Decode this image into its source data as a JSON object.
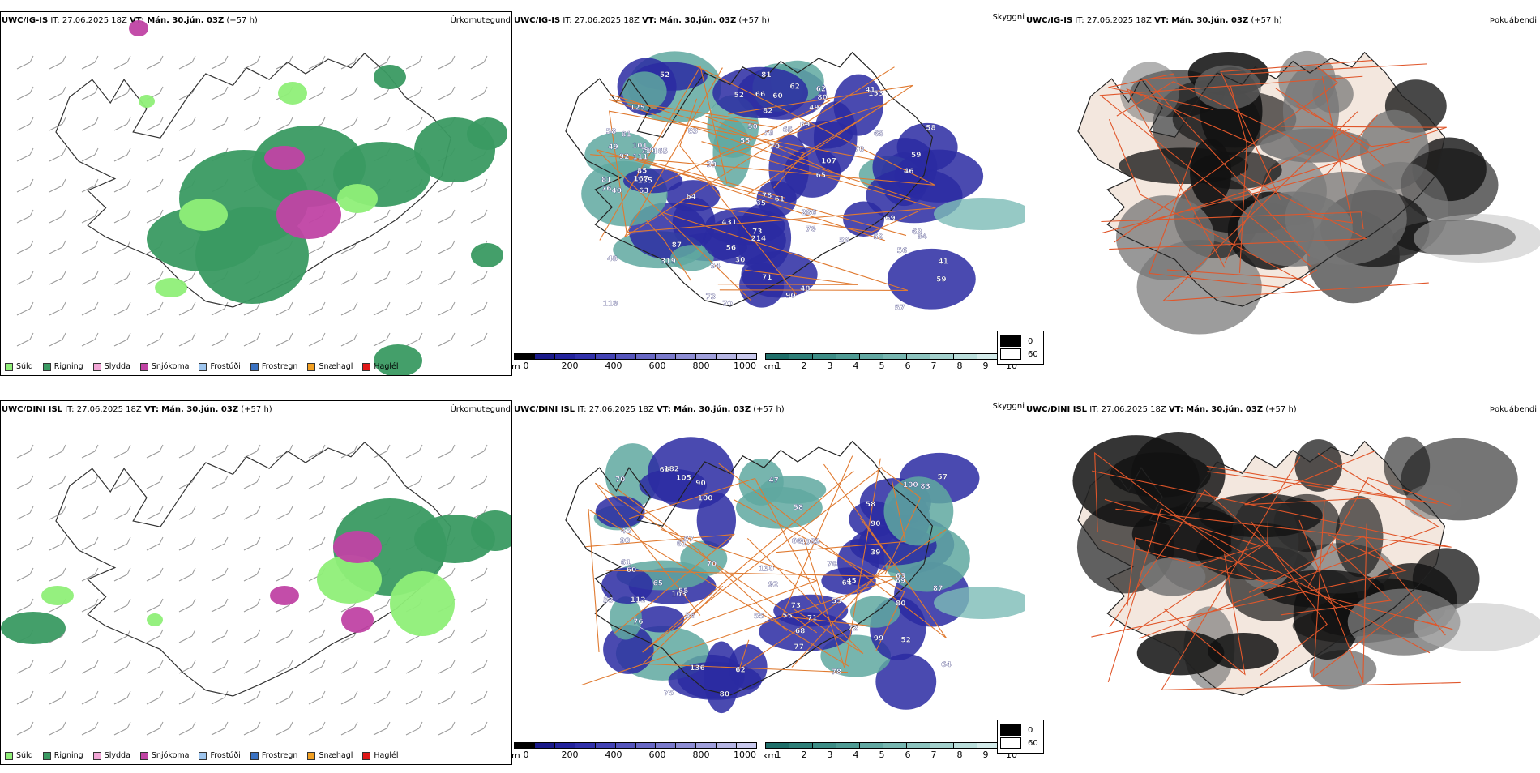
{
  "rows": [
    {
      "model": "UWC/IG-IS",
      "run": "IT: 27.06.2025 18Z",
      "valid_label": "VT:",
      "valid": "Mán. 30.jún. 03Z",
      "lead": "(+57 h)",
      "visibility_values": [
        "66",
        "59",
        "83",
        "92",
        "70",
        "69",
        "62",
        "82",
        "70",
        "64",
        "69",
        "76",
        "60",
        "76",
        "81",
        "80",
        "101",
        "73",
        "59",
        "52",
        "57",
        "56",
        "48",
        "49",
        "62",
        "107",
        "73",
        "49",
        "59",
        "58",
        "50",
        "81",
        "61",
        "90",
        "111",
        "125",
        "165",
        "71",
        "85",
        "94",
        "78",
        "63",
        "56",
        "59",
        "68",
        "65",
        "71",
        "63",
        "50",
        "59",
        "87",
        "135",
        "41",
        "55",
        "81",
        "70",
        "40",
        "35",
        "48",
        "214",
        "153",
        "41",
        "58",
        "33",
        "34",
        "46",
        "30",
        "319",
        "286",
        "431",
        "167",
        "52",
        "65",
        "118"
      ]
    },
    {
      "model": "UWC/DINI ISL",
      "run": "IT: 27.06.2025 18Z",
      "valid_label": "VT:",
      "valid": "Mán. 30.jún. 03Z",
      "lead": "(+57 h)",
      "visibility_values": [
        "68",
        "77",
        "76",
        "47",
        "105",
        "112",
        "87",
        "103",
        "63",
        "70",
        "80",
        "72",
        "100",
        "92",
        "58",
        "64",
        "55",
        "60",
        "57",
        "90",
        "56",
        "66",
        "78",
        "69",
        "83",
        "71",
        "61",
        "73",
        "75",
        "64",
        "62",
        "58",
        "83",
        "90",
        "55",
        "100",
        "70",
        "55",
        "45",
        "55",
        "39",
        "90",
        "66",
        "78",
        "136",
        "130",
        "182",
        "80",
        "49",
        "45",
        "52",
        "67",
        "58",
        "65",
        "99",
        "61"
      ]
    }
  ],
  "panel_titles": {
    "ptype": "Úrkomutegund",
    "visibility": "Skyggni",
    "fog": "Þokuábendi"
  },
  "ptype_legend": [
    {
      "label": "Súld",
      "color": "#8fef78"
    },
    {
      "label": "Rigning",
      "color": "#3a9a62"
    },
    {
      "label": "Slydda",
      "color": "#f2a6d6"
    },
    {
      "label": "Snjókoma",
      "color": "#c043a4"
    },
    {
      "label": "Frostúði",
      "color": "#9ec5ee"
    },
    {
      "label": "Frostregn",
      "color": "#3a72c2"
    },
    {
      "label": "Snæhagl",
      "color": "#f2a022"
    },
    {
      "label": "Haglél",
      "color": "#e01818"
    }
  ],
  "terrain_bar": {
    "unit": "m",
    "ticks": [
      "0",
      "200",
      "400",
      "600",
      "800",
      "1000"
    ],
    "colors": [
      "#000000",
      "#1a1a8a",
      "#23239c",
      "#3131aa",
      "#4343b4",
      "#5555bc",
      "#6767c4",
      "#7a7acc",
      "#8d8dd4",
      "#a0a0dc",
      "#b6b6e4",
      "#cacaee"
    ]
  },
  "cloud_bar": {
    "unit": "km",
    "ticks": [
      "1",
      "2",
      "3",
      "4",
      "5",
      "6",
      "7",
      "8",
      "9",
      "10"
    ],
    "colors": [
      "#1f6f6a",
      "#2e7f78",
      "#3d8d86",
      "#4f9b94",
      "#62a8a2",
      "#77b6b0",
      "#8cc3be",
      "#a3d0cc",
      "#bbdedb",
      "#d4ebea",
      "#ecf6f6"
    ]
  },
  "fog_legend": [
    {
      "value": "0",
      "color": "#000000"
    },
    {
      "value": "60",
      "color": "#ffffff"
    }
  ]
}
